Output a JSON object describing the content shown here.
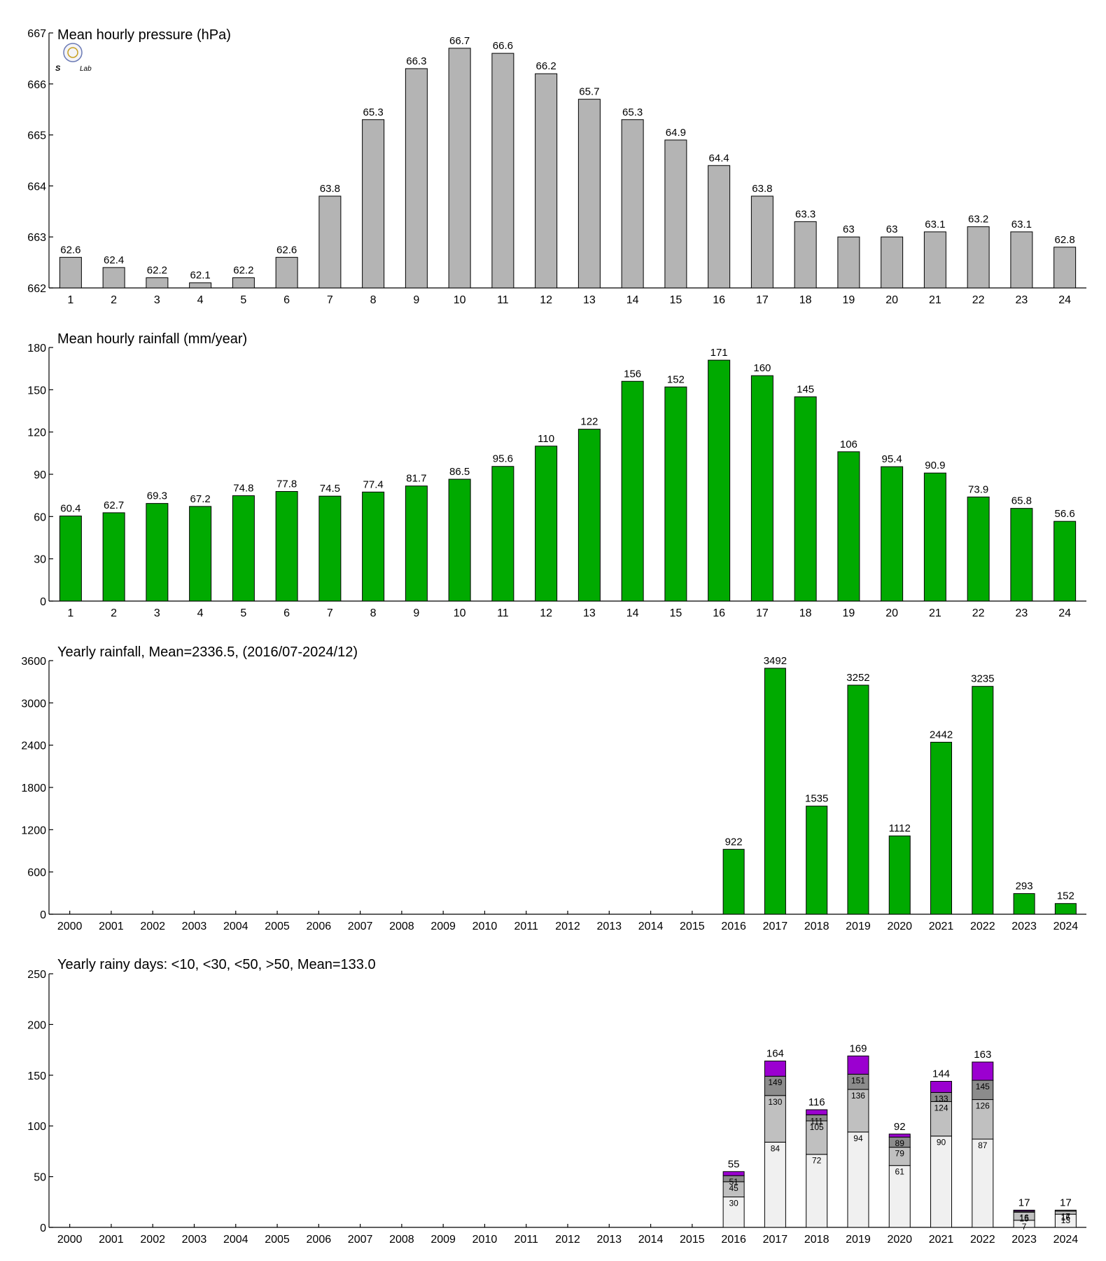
{
  "colors": {
    "pressure": "#b4b4b4",
    "rain": "#00aa00",
    "days_lt10": "#f0f0f0",
    "days_lt30": "#c0c0c0",
    "days_lt50": "#8c8c8c",
    "days_gt50": "#9b00d0"
  },
  "logo": {
    "icon": "seal-logo-icon",
    "text": "Lab"
  },
  "chart_data": [
    {
      "id": "pressure",
      "type": "bar",
      "title": "Mean hourly pressure (hPa)",
      "categories": [
        "1",
        "2",
        "3",
        "4",
        "5",
        "6",
        "7",
        "8",
        "9",
        "10",
        "11",
        "12",
        "13",
        "14",
        "15",
        "16",
        "17",
        "18",
        "19",
        "20",
        "21",
        "22",
        "23",
        "24"
      ],
      "values": [
        662.6,
        662.4,
        662.2,
        662.1,
        662.2,
        662.6,
        663.8,
        665.3,
        666.3,
        666.7,
        666.6,
        666.2,
        665.7,
        665.3,
        664.9,
        664.4,
        663.8,
        663.3,
        663.0,
        663.0,
        663.1,
        663.2,
        663.1,
        662.8
      ],
      "data_labels": [
        "62.6",
        "62.4",
        "62.2",
        "62.1",
        "62.2",
        "62.6",
        "63.8",
        "65.3",
        "66.3",
        "66.7",
        "66.6",
        "66.2",
        "65.7",
        "65.3",
        "64.9",
        "64.4",
        "63.8",
        "63.3",
        "63",
        "63",
        "63.1",
        "63.2",
        "63.1",
        "62.8"
      ],
      "ylim": [
        662,
        667
      ],
      "yticks": [
        "662",
        "663",
        "664",
        "665",
        "666",
        "667"
      ],
      "grid": false
    },
    {
      "id": "hourly_rain",
      "type": "bar",
      "title": "Mean hourly rainfall (mm/year)",
      "categories": [
        "1",
        "2",
        "3",
        "4",
        "5",
        "6",
        "7",
        "8",
        "9",
        "10",
        "11",
        "12",
        "13",
        "14",
        "15",
        "16",
        "17",
        "18",
        "19",
        "20",
        "21",
        "22",
        "23",
        "24"
      ],
      "values": [
        60.4,
        62.7,
        69.3,
        67.2,
        74.8,
        77.8,
        74.5,
        77.4,
        81.7,
        86.5,
        95.6,
        110,
        122,
        156,
        152,
        171,
        160,
        145,
        106,
        95.4,
        90.9,
        73.9,
        65.8,
        56.6
      ],
      "data_labels": [
        "60.4",
        "62.7",
        "69.3",
        "67.2",
        "74.8",
        "77.8",
        "74.5",
        "77.4",
        "81.7",
        "86.5",
        "95.6",
        "110",
        "122",
        "156",
        "152",
        "171",
        "160",
        "145",
        "106",
        "95.4",
        "90.9",
        "73.9",
        "65.8",
        "56.6"
      ],
      "ylim": [
        0,
        180
      ],
      "yticks": [
        "0",
        "30",
        "60",
        "90",
        "120",
        "150",
        "180"
      ],
      "grid": false
    },
    {
      "id": "yearly_rain",
      "type": "bar",
      "title": "Yearly rainfall, Mean=2336.5, (2016/07-2024/12)",
      "categories": [
        "2000",
        "2001",
        "2002",
        "2003",
        "2004",
        "2005",
        "2006",
        "2007",
        "2008",
        "2009",
        "2010",
        "2011",
        "2012",
        "2013",
        "2014",
        "2015",
        "2016",
        "2017",
        "2018",
        "2019",
        "2020",
        "2021",
        "2022",
        "2023",
        "2024"
      ],
      "values": [
        null,
        null,
        null,
        null,
        null,
        null,
        null,
        null,
        null,
        null,
        null,
        null,
        null,
        null,
        null,
        null,
        922,
        3492,
        1535,
        3252,
        1112,
        2442,
        3235,
        293,
        152
      ],
      "data_labels": [
        null,
        null,
        null,
        null,
        null,
        null,
        null,
        null,
        null,
        null,
        null,
        null,
        null,
        null,
        null,
        null,
        "922",
        "3492",
        "1535",
        "3252",
        "1112",
        "2442",
        "3235",
        "293",
        "152"
      ],
      "ylim": [
        0,
        3600
      ],
      "yticks": [
        "0",
        "600",
        "1200",
        "1800",
        "2400",
        "3000",
        "3600"
      ],
      "grid": false
    },
    {
      "id": "rainy_days",
      "type": "bar",
      "stacked": true,
      "title": "Yearly rainy days: <10, <30, <50, >50, Mean=133.0",
      "categories": [
        "2000",
        "2001",
        "2002",
        "2003",
        "2004",
        "2005",
        "2006",
        "2007",
        "2008",
        "2009",
        "2010",
        "2011",
        "2012",
        "2013",
        "2014",
        "2015",
        "2016",
        "2017",
        "2018",
        "2019",
        "2020",
        "2021",
        "2022",
        "2023",
        "2024"
      ],
      "cumulative": [
        null,
        null,
        null,
        null,
        null,
        null,
        null,
        null,
        null,
        null,
        null,
        null,
        null,
        null,
        null,
        null,
        [
          30,
          45,
          51,
          55
        ],
        [
          84,
          130,
          149,
          164
        ],
        [
          72,
          105,
          111,
          116
        ],
        [
          94,
          136,
          151,
          169
        ],
        [
          61,
          79,
          89,
          92
        ],
        [
          90,
          124,
          133,
          144
        ],
        [
          87,
          126,
          145,
          163
        ],
        [
          7,
          15,
          16,
          17
        ],
        [
          13,
          16,
          17,
          17
        ]
      ],
      "totals": [
        null,
        null,
        null,
        null,
        null,
        null,
        null,
        null,
        null,
        null,
        null,
        null,
        null,
        null,
        null,
        null,
        "55",
        "164",
        "116",
        "169",
        "92",
        "144",
        "163",
        "17",
        "17"
      ],
      "ylim": [
        0,
        250
      ],
      "yticks": [
        "0",
        "50",
        "100",
        "150",
        "200",
        "250"
      ],
      "grid": false
    }
  ]
}
